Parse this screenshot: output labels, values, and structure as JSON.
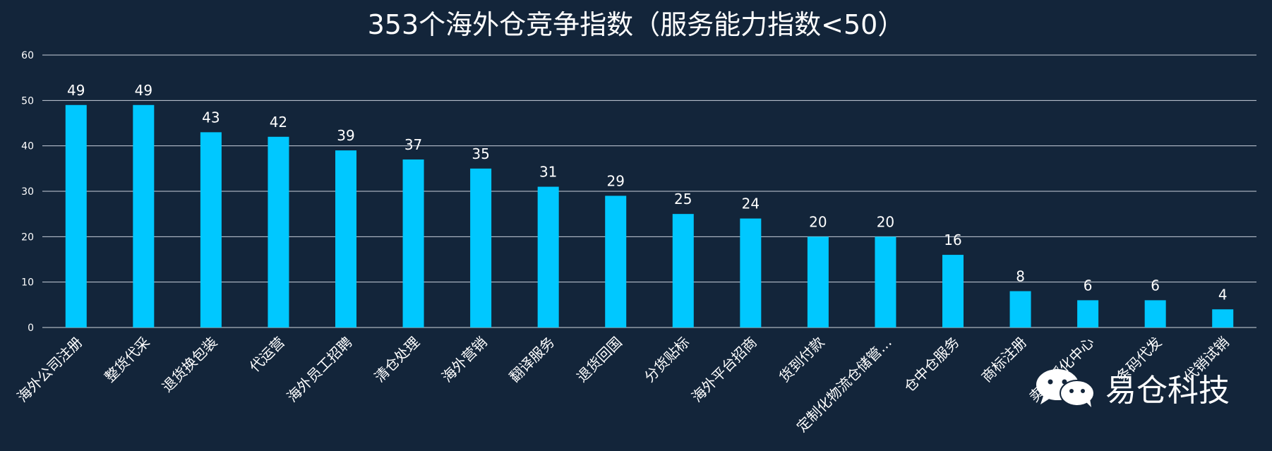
{
  "chart_data": {
    "type": "bar",
    "title": "353个海外仓竞争指数（服务能力指数<50）",
    "xlabel": "",
    "ylabel": "",
    "ylim": [
      0,
      60
    ],
    "yticks": [
      0,
      10,
      20,
      30,
      40,
      50,
      60
    ],
    "grid": true,
    "data_labels": true,
    "categories": [
      "海外公司注册",
      "整货代采",
      "退货换包装",
      "代运营",
      "海外员工招聘",
      "清仓处理",
      "海外营销",
      "翻译服务",
      "退货回国",
      "分货贴标",
      "海外平台招商",
      "货到付款",
      "定制化物流仓储管…",
      "仓中仓服务",
      "商标注册",
      "卖家孵化中心",
      "条码代发",
      "代销试销"
    ],
    "values": [
      49,
      49,
      43,
      42,
      39,
      37,
      35,
      31,
      29,
      25,
      24,
      20,
      20,
      16,
      8,
      6,
      6,
      4
    ],
    "bar_color": "#00c8ff"
  },
  "colors": {
    "background": "#13253a",
    "text": "#ffffff",
    "grid": "#c8d0da",
    "bar": "#00c8ff"
  },
  "watermark": {
    "text": "易仓科技",
    "icon": "wechat-icon"
  }
}
